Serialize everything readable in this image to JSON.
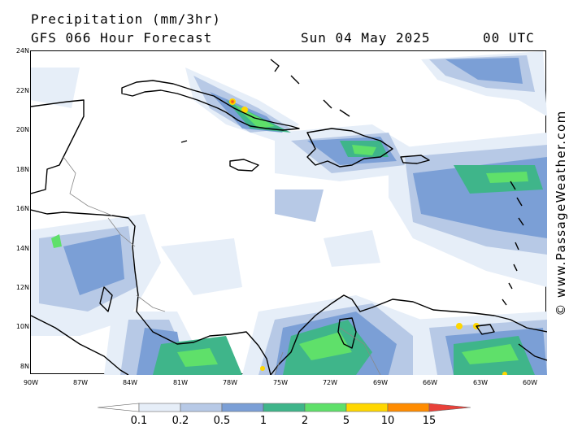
{
  "header": {
    "title": "Precipitation (mm/3hr)",
    "model": "GFS 066 Hour Forecast",
    "date": "Sun 04 May 2025",
    "time": "00 UTC"
  },
  "map": {
    "region": "Caribbean Sea",
    "lat_labels": [
      "24N",
      "22N",
      "20N",
      "18N",
      "16N",
      "14N",
      "12N",
      "10N",
      "8N"
    ],
    "lon_labels": [
      "90W",
      "87W",
      "84W",
      "81W",
      "78W",
      "75W",
      "72W",
      "69W",
      "66W",
      "63W",
      "60W"
    ]
  },
  "legend": {
    "labels": [
      "0.1",
      "0.2",
      "0.5",
      "1",
      "2",
      "5",
      "10",
      "15"
    ],
    "colors": [
      "#e6eef8",
      "#b7c9e6",
      "#7b9fd6",
      "#3fb58a",
      "#5fe06a",
      "#ffd700",
      "#ff8c00",
      "#e8413a"
    ]
  },
  "watermark": "© www.PassageWeather.com"
}
